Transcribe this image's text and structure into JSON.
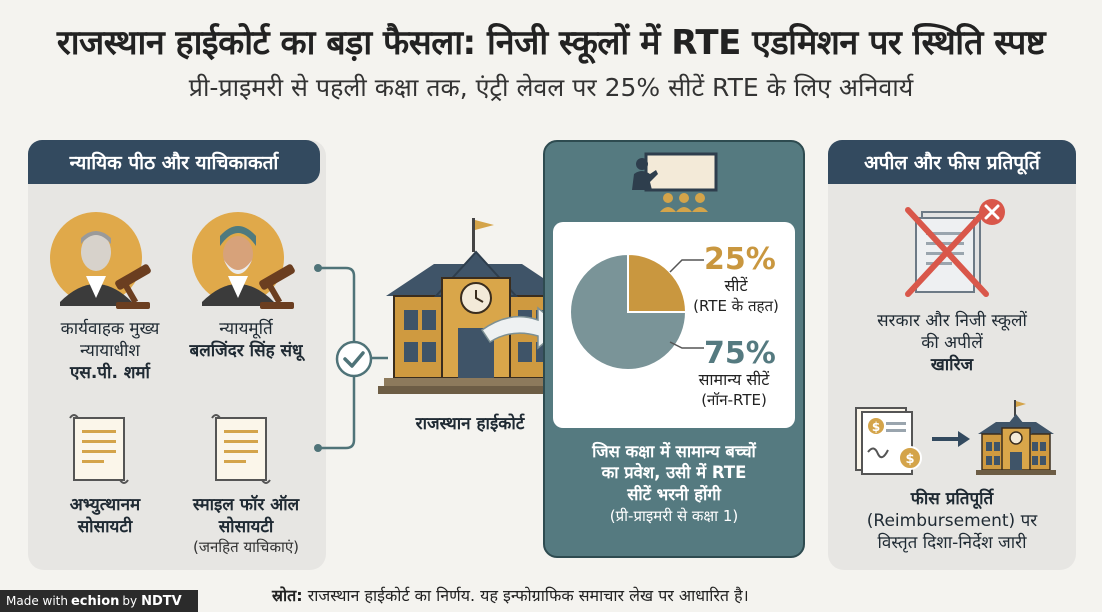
{
  "header": {
    "title": "राजस्थान हाईकोर्ट का बड़ा फैसला: निजी स्कूलों में RTE एडमिशन पर स्थिति स्पष्ट",
    "subtitle": "प्री-प्राइमरी से पहली कक्षा तक, एंट्री लेवल पर 25% सीटें RTE के लिए अनिवार्य"
  },
  "left_panel": {
    "heading": "न्यायिक पीठ और याचिकाकर्ता",
    "judge1": {
      "role_line1": "कार्यवाहक मुख्य",
      "role_line2": "न्यायाधीश",
      "name": "एस.पी. शर्मा"
    },
    "judge2": {
      "role": "न्यायमूर्ति",
      "name": "बलजिंदर सिंह संधू"
    },
    "petitioner1": {
      "line1": "अभ्युत्थानम",
      "line2": "सोसायटी"
    },
    "petitioner2": {
      "line1": "स्माइल फॉर ऑल",
      "line2": "सोसायटी",
      "note": "(जनहित याचिकाएं)"
    }
  },
  "court": {
    "label": "राजस्थान हाईकोर्ट"
  },
  "center_panel": {
    "rte": {
      "percent": "25%",
      "label": "सीटें",
      "note": "(RTE के तहत)"
    },
    "general": {
      "percent": "75%",
      "label": "सामान्य सीटें",
      "note": "(नॉन-RTE)"
    },
    "text_line1": "जिस कक्षा में सामान्य बच्चों",
    "text_line2": "का प्रवेश, उसी में RTE",
    "text_line3": "सीटें भरनी होंगी",
    "text_note": "(प्री-प्राइमरी से कक्षा 1)"
  },
  "chart_data": {
    "type": "pie",
    "categories": [
      "RTE सीटें",
      "सामान्य सीटें"
    ],
    "values": [
      25,
      75
    ]
  },
  "right_panel": {
    "heading": "अपील और फीस प्रतिपूर्ति",
    "appeal_line1": "सरकार और निजी स्कूलों",
    "appeal_line2": "की अपीलें",
    "appeal_result": "खारिज",
    "fee_title": "फीस प्रतिपूर्ति",
    "fee_line1": "(Reimbursement) पर",
    "fee_line2": "विस्तृत दिशा-निर्देश जारी"
  },
  "footer": {
    "source_label": "स्रोत:",
    "source_text": " राजस्थान हाईकोर्ट का निर्णय. यह इन्फोग्राफिक समाचार लेख पर आधारित है।"
  },
  "watermark": {
    "prefix": "Made with",
    "brand": "echion",
    "by": "by",
    "channel": "NDTV"
  },
  "colors": {
    "navy": "#334a5f",
    "teal": "#557a80",
    "gold": "#d4a44a",
    "pie_gray": "#7a9498",
    "pie_gold": "#c9973f"
  }
}
